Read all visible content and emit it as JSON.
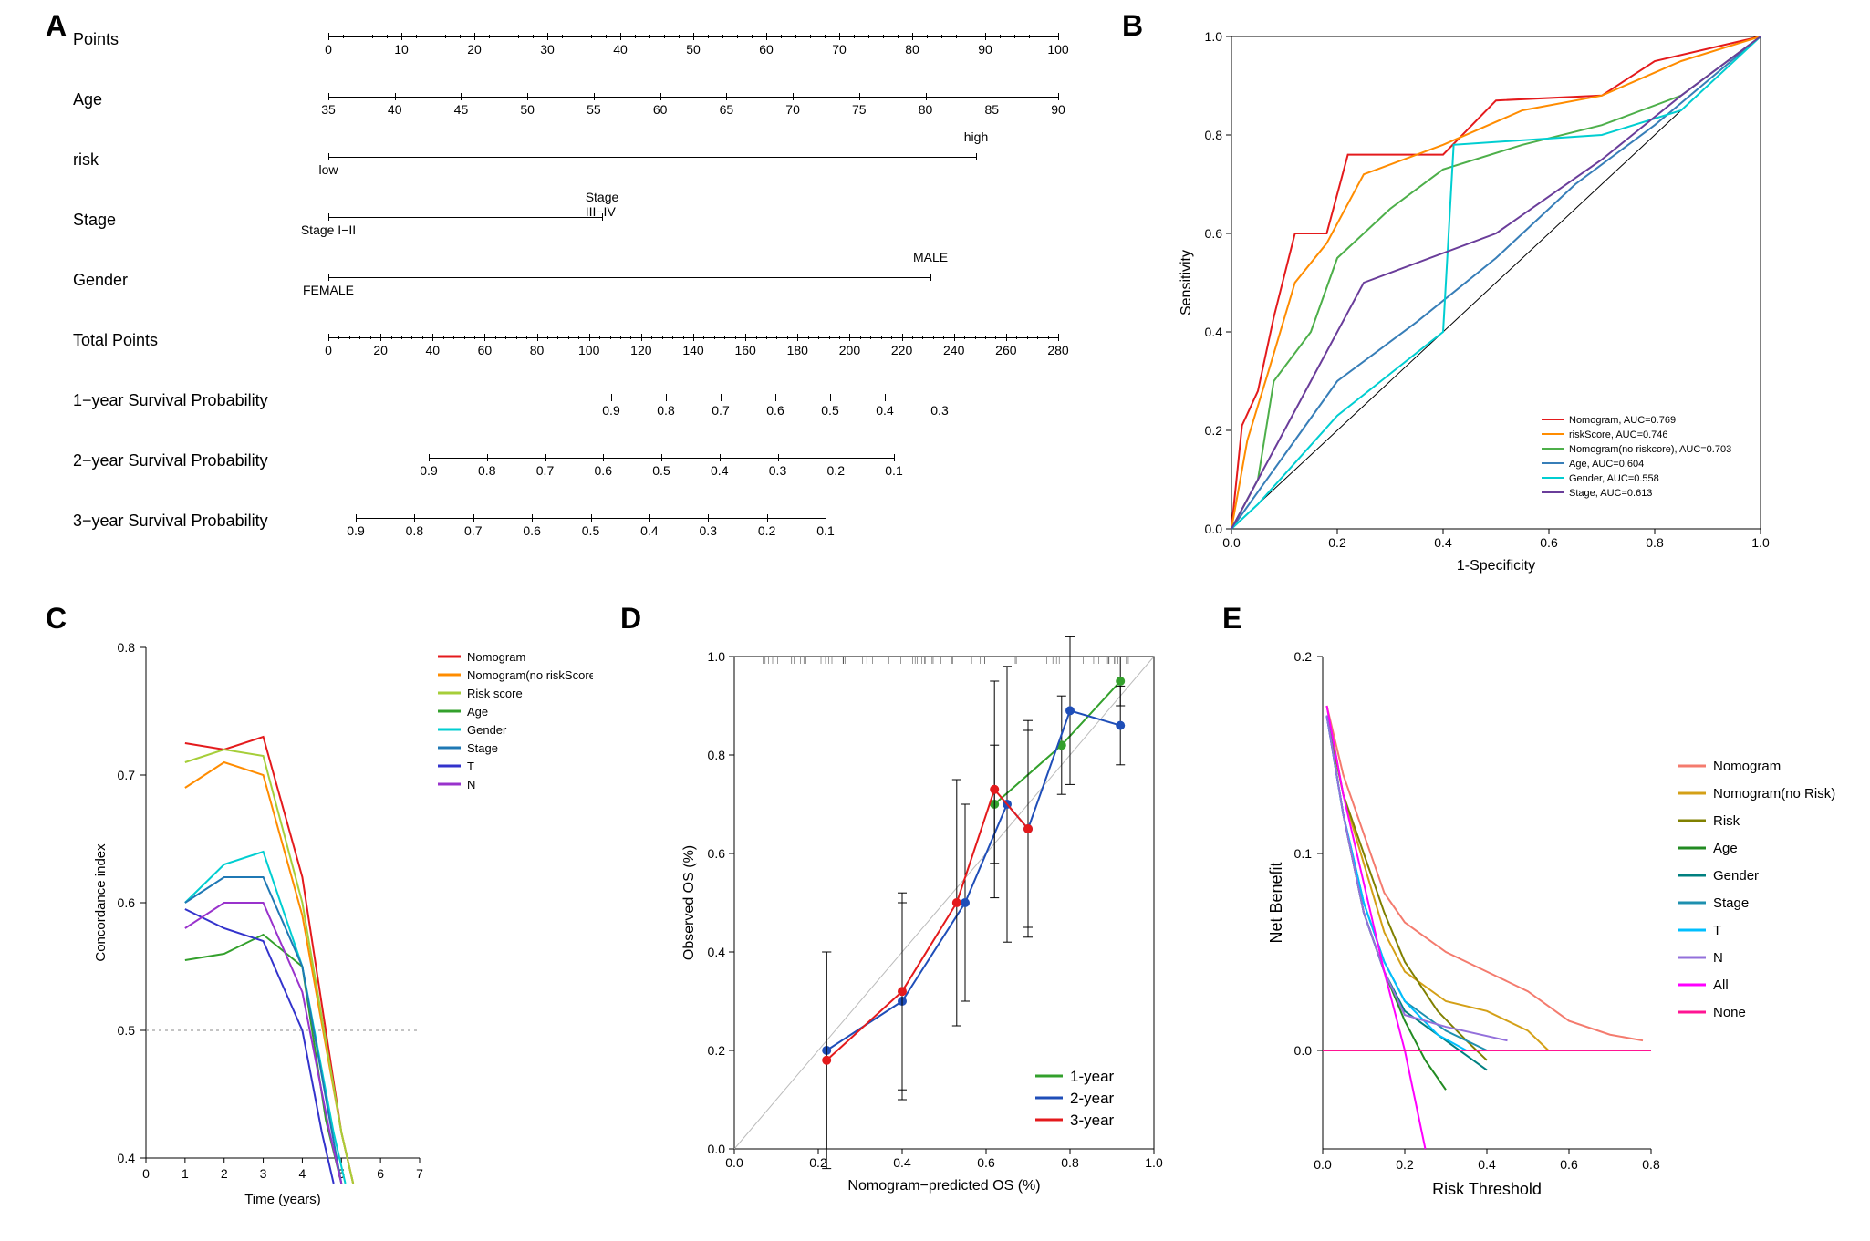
{
  "panelLabels": {
    "A": "A",
    "B": "B",
    "C": "C",
    "D": "D",
    "E": "E"
  },
  "nomogram": {
    "rows": [
      {
        "label": "Points",
        "start": 0,
        "end": 800,
        "ticks": [
          0,
          10,
          20,
          30,
          40,
          50,
          60,
          70,
          80,
          90,
          100
        ]
      },
      {
        "label": "Age",
        "start": 0,
        "end": 800,
        "ticks": [
          35,
          40,
          45,
          50,
          55,
          60,
          65,
          70,
          75,
          80,
          85,
          90
        ]
      },
      {
        "label": "risk",
        "start": 0,
        "end": 710,
        "endpoints": [
          "low",
          "high"
        ]
      },
      {
        "label": "Stage",
        "start": 0,
        "end": 300,
        "endpoints": [
          "Stage I−II",
          "Stage III−IV"
        ]
      },
      {
        "label": "Gender",
        "start": 0,
        "end": 660,
        "endpoints": [
          "FEMALE",
          "MALE"
        ]
      },
      {
        "label": "Total Points",
        "start": 0,
        "end": 800,
        "ticks": [
          0,
          20,
          40,
          60,
          80,
          100,
          120,
          140,
          160,
          180,
          200,
          220,
          240,
          260,
          280
        ]
      },
      {
        "label": "1−year Survival Probability",
        "start": 310,
        "end": 670,
        "ticks": [
          0.9,
          0.8,
          0.7,
          0.6,
          0.5,
          0.4,
          0.3
        ]
      },
      {
        "label": "2−year Survival Probability",
        "start": 110,
        "end": 620,
        "ticks": [
          0.9,
          0.8,
          0.7,
          0.6,
          0.5,
          0.4,
          0.3,
          0.2,
          0.1
        ]
      },
      {
        "label": "3−year Survival Probability",
        "start": 30,
        "end": 545,
        "ticks": [
          0.9,
          0.8,
          0.7,
          0.6,
          0.5,
          0.4,
          0.3,
          0.2,
          0.1
        ]
      }
    ]
  },
  "roc": {
    "xlabel": "1-Specificity",
    "ylabel": "Sensitivity",
    "xlim": [
      0,
      1
    ],
    "ylim": [
      0,
      1
    ],
    "ticks": [
      0.0,
      0.2,
      0.4,
      0.6,
      0.8,
      1.0
    ],
    "legend": [
      {
        "label": "Nomogram, AUC=0.769",
        "color": "#e41a1c"
      },
      {
        "label": "riskScore, AUC=0.746",
        "color": "#ff8c00"
      },
      {
        "label": "Nomogram(no riskcore), AUC=0.703",
        "color": "#4daf4a"
      },
      {
        "label": "Age, AUC=0.604",
        "color": "#377eb8"
      },
      {
        "label": "Gender, AUC=0.558",
        "color": "#00ced1"
      },
      {
        "label": "Stage, AUC=0.613",
        "color": "#6a3d9a"
      }
    ],
    "curves": {
      "Nomogram": {
        "color": "#e41a1c",
        "pts": [
          [
            0,
            0
          ],
          [
            0.02,
            0.21
          ],
          [
            0.05,
            0.28
          ],
          [
            0.08,
            0.43
          ],
          [
            0.12,
            0.6
          ],
          [
            0.18,
            0.6
          ],
          [
            0.22,
            0.76
          ],
          [
            0.4,
            0.76
          ],
          [
            0.5,
            0.87
          ],
          [
            0.7,
            0.88
          ],
          [
            0.8,
            0.95
          ],
          [
            1,
            1
          ]
        ]
      },
      "riskScore": {
        "color": "#ff8c00",
        "pts": [
          [
            0,
            0
          ],
          [
            0.03,
            0.18
          ],
          [
            0.07,
            0.32
          ],
          [
            0.12,
            0.5
          ],
          [
            0.18,
            0.58
          ],
          [
            0.25,
            0.72
          ],
          [
            0.4,
            0.78
          ],
          [
            0.55,
            0.85
          ],
          [
            0.7,
            0.88
          ],
          [
            0.85,
            0.95
          ],
          [
            1,
            1
          ]
        ]
      },
      "NomNoRisk": {
        "color": "#4daf4a",
        "pts": [
          [
            0,
            0
          ],
          [
            0.05,
            0.1
          ],
          [
            0.08,
            0.3
          ],
          [
            0.15,
            0.4
          ],
          [
            0.2,
            0.55
          ],
          [
            0.3,
            0.65
          ],
          [
            0.4,
            0.73
          ],
          [
            0.55,
            0.78
          ],
          [
            0.7,
            0.82
          ],
          [
            0.85,
            0.88
          ],
          [
            1,
            1
          ]
        ]
      },
      "Age": {
        "color": "#377eb8",
        "pts": [
          [
            0,
            0
          ],
          [
            0.1,
            0.15
          ],
          [
            0.2,
            0.3
          ],
          [
            0.35,
            0.42
          ],
          [
            0.5,
            0.55
          ],
          [
            0.65,
            0.7
          ],
          [
            0.8,
            0.82
          ],
          [
            1,
            1
          ]
        ]
      },
      "Gender": {
        "color": "#00ced1",
        "pts": [
          [
            0,
            0
          ],
          [
            0.05,
            0.05
          ],
          [
            0.2,
            0.23
          ],
          [
            0.4,
            0.4
          ],
          [
            0.42,
            0.78
          ],
          [
            0.7,
            0.8
          ],
          [
            0.85,
            0.85
          ],
          [
            1,
            1
          ]
        ]
      },
      "Stage": {
        "color": "#6a3d9a",
        "pts": [
          [
            0,
            0
          ],
          [
            0.15,
            0.3
          ],
          [
            0.25,
            0.5
          ],
          [
            0.5,
            0.6
          ],
          [
            0.7,
            0.75
          ],
          [
            0.85,
            0.88
          ],
          [
            1,
            1
          ]
        ]
      }
    }
  },
  "cindex": {
    "xlabel": "Time (years)",
    "ylabel": "Concordance index",
    "xlim": [
      0,
      7
    ],
    "ylim": [
      0.4,
      0.8
    ],
    "xticks": [
      0,
      1,
      2,
      3,
      4,
      5,
      6,
      7
    ],
    "yticks": [
      0.4,
      0.5,
      0.6,
      0.7,
      0.8
    ],
    "refline_y": 0.5,
    "legend": [
      {
        "label": "Nomogram",
        "color": "#e41a1c"
      },
      {
        "label": "Nomogram(no riskScore)",
        "color": "#ff8c00"
      },
      {
        "label": "Risk score",
        "color": "#a6ce39"
      },
      {
        "label": "Age",
        "color": "#33a02c"
      },
      {
        "label": "Gender",
        "color": "#00ced1"
      },
      {
        "label": "Stage",
        "color": "#1f78b4"
      },
      {
        "label": "T",
        "color": "#3333cc"
      },
      {
        "label": "N",
        "color": "#9933cc"
      }
    ],
    "curves": {
      "Nomogram": {
        "color": "#e41a1c",
        "pts": [
          [
            1,
            0.725
          ],
          [
            2,
            0.72
          ],
          [
            3,
            0.73
          ],
          [
            4,
            0.62
          ],
          [
            5,
            0.42
          ],
          [
            5.3,
            0.38
          ]
        ]
      },
      "NomNoRisk": {
        "color": "#ff8c00",
        "pts": [
          [
            1,
            0.69
          ],
          [
            2,
            0.71
          ],
          [
            3,
            0.7
          ],
          [
            4,
            0.59
          ],
          [
            5,
            0.42
          ],
          [
            5.3,
            0.38
          ]
        ]
      },
      "RiskScore": {
        "color": "#a6ce39",
        "pts": [
          [
            1,
            0.71
          ],
          [
            2,
            0.72
          ],
          [
            3,
            0.715
          ],
          [
            4,
            0.6
          ],
          [
            5,
            0.42
          ],
          [
            5.3,
            0.38
          ]
        ]
      },
      "Age": {
        "color": "#33a02c",
        "pts": [
          [
            1,
            0.555
          ],
          [
            2,
            0.56
          ],
          [
            3,
            0.575
          ],
          [
            4,
            0.55
          ],
          [
            4.6,
            0.43
          ],
          [
            5,
            0.38
          ]
        ]
      },
      "Gender": {
        "color": "#00ced1",
        "pts": [
          [
            1,
            0.6
          ],
          [
            2,
            0.63
          ],
          [
            3,
            0.64
          ],
          [
            4,
            0.55
          ],
          [
            4.8,
            0.42
          ],
          [
            5.1,
            0.38
          ]
        ]
      },
      "Stage": {
        "color": "#1f78b4",
        "pts": [
          [
            1,
            0.6
          ],
          [
            2,
            0.62
          ],
          [
            3,
            0.62
          ],
          [
            4,
            0.55
          ],
          [
            4.7,
            0.43
          ],
          [
            5,
            0.38
          ]
        ]
      },
      "T": {
        "color": "#3333cc",
        "pts": [
          [
            1,
            0.595
          ],
          [
            2,
            0.58
          ],
          [
            3,
            0.57
          ],
          [
            4,
            0.5
          ],
          [
            4.5,
            0.42
          ],
          [
            4.8,
            0.38
          ]
        ]
      },
      "N": {
        "color": "#9933cc",
        "pts": [
          [
            1,
            0.58
          ],
          [
            2,
            0.6
          ],
          [
            3,
            0.6
          ],
          [
            4,
            0.53
          ],
          [
            4.7,
            0.42
          ],
          [
            5,
            0.38
          ]
        ]
      }
    }
  },
  "calibration": {
    "xlabel": "Nomogram−predicted OS (%)",
    "ylabel": "Observed OS (%)",
    "xlim": [
      0,
      1
    ],
    "ylim": [
      0,
      1
    ],
    "ticks": [
      0,
      0.2,
      0.4,
      0.6,
      0.8,
      1.0
    ],
    "legend": [
      {
        "label": "1-year",
        "color": "#33a02c"
      },
      {
        "label": "2-year",
        "color": "#1f4eb8"
      },
      {
        "label": "3-year",
        "color": "#e41a1c"
      }
    ],
    "series": {
      "1year": {
        "color": "#33a02c",
        "pts": [
          [
            0.62,
            0.7
          ],
          [
            0.78,
            0.82
          ],
          [
            0.92,
            0.95
          ]
        ],
        "err": [
          0.12,
          0.1,
          0.05
        ]
      },
      "2year": {
        "color": "#1f4eb8",
        "pts": [
          [
            0.22,
            0.2
          ],
          [
            0.4,
            0.3
          ],
          [
            0.55,
            0.5
          ],
          [
            0.65,
            0.7
          ],
          [
            0.7,
            0.65
          ],
          [
            0.8,
            0.89
          ],
          [
            0.92,
            0.86
          ]
        ],
        "err": [
          0.2,
          0.2,
          0.2,
          0.28,
          0.22,
          0.15,
          0.08
        ]
      },
      "3year": {
        "color": "#e41a1c",
        "pts": [
          [
            0.22,
            0.18
          ],
          [
            0.4,
            0.32
          ],
          [
            0.53,
            0.5
          ],
          [
            0.62,
            0.73
          ],
          [
            0.7,
            0.65
          ]
        ],
        "err": [
          0.22,
          0.2,
          0.25,
          0.22,
          0.2
        ]
      }
    }
  },
  "dca": {
    "xlabel": "Risk Threshold",
    "ylabel": "Net Benefit",
    "xlim": [
      0,
      0.8
    ],
    "ylim": [
      -0.05,
      0.2
    ],
    "xticks": [
      0.0,
      0.2,
      0.4,
      0.6,
      0.8
    ],
    "yticks": [
      0.0,
      0.1,
      0.2
    ],
    "legend": [
      {
        "label": "Nomogram",
        "color": "#f47b6e"
      },
      {
        "label": "Nomogram(no Risk)",
        "color": "#d4a017"
      },
      {
        "label": "Risk",
        "color": "#808000"
      },
      {
        "label": "Age",
        "color": "#228b22"
      },
      {
        "label": "Gender",
        "color": "#008080"
      },
      {
        "label": "Stage",
        "color": "#1e90af"
      },
      {
        "label": "T",
        "color": "#00bfff"
      },
      {
        "label": "N",
        "color": "#9370db"
      },
      {
        "label": "All",
        "color": "#ff00ff"
      },
      {
        "label": "None",
        "color": "#ff1493"
      }
    ],
    "curves": {
      "Nomogram": {
        "color": "#f47b6e",
        "pts": [
          [
            0.01,
            0.175
          ],
          [
            0.05,
            0.14
          ],
          [
            0.1,
            0.11
          ],
          [
            0.15,
            0.08
          ],
          [
            0.2,
            0.065
          ],
          [
            0.3,
            0.05
          ],
          [
            0.4,
            0.04
          ],
          [
            0.5,
            0.03
          ],
          [
            0.6,
            0.015
          ],
          [
            0.7,
            0.008
          ],
          [
            0.78,
            0.005
          ]
        ]
      },
      "NomNoRisk": {
        "color": "#d4a017",
        "pts": [
          [
            0.01,
            0.175
          ],
          [
            0.05,
            0.13
          ],
          [
            0.1,
            0.095
          ],
          [
            0.15,
            0.06
          ],
          [
            0.2,
            0.04
          ],
          [
            0.3,
            0.025
          ],
          [
            0.4,
            0.02
          ],
          [
            0.5,
            0.01
          ],
          [
            0.55,
            0
          ]
        ]
      },
      "Risk": {
        "color": "#808000",
        "pts": [
          [
            0.01,
            0.17
          ],
          [
            0.05,
            0.13
          ],
          [
            0.1,
            0.1
          ],
          [
            0.15,
            0.07
          ],
          [
            0.2,
            0.045
          ],
          [
            0.28,
            0.02
          ],
          [
            0.35,
            0.005
          ],
          [
            0.4,
            -0.005
          ]
        ]
      },
      "Age": {
        "color": "#228b22",
        "pts": [
          [
            0.01,
            0.17
          ],
          [
            0.05,
            0.12
          ],
          [
            0.1,
            0.07
          ],
          [
            0.15,
            0.04
          ],
          [
            0.2,
            0.015
          ],
          [
            0.25,
            -0.005
          ],
          [
            0.3,
            -0.02
          ]
        ]
      },
      "Gender": {
        "color": "#008080",
        "pts": [
          [
            0.01,
            0.17
          ],
          [
            0.05,
            0.12
          ],
          [
            0.1,
            0.07
          ],
          [
            0.15,
            0.04
          ],
          [
            0.2,
            0.02
          ],
          [
            0.3,
            0.005
          ],
          [
            0.4,
            -0.01
          ]
        ]
      },
      "Stage": {
        "color": "#1e90af",
        "pts": [
          [
            0.01,
            0.17
          ],
          [
            0.05,
            0.12
          ],
          [
            0.1,
            0.075
          ],
          [
            0.15,
            0.045
          ],
          [
            0.2,
            0.025
          ],
          [
            0.3,
            0.01
          ],
          [
            0.4,
            0
          ]
        ]
      },
      "T": {
        "color": "#00bfff",
        "pts": [
          [
            0.01,
            0.17
          ],
          [
            0.05,
            0.12
          ],
          [
            0.1,
            0.075
          ],
          [
            0.15,
            0.045
          ],
          [
            0.2,
            0.025
          ],
          [
            0.28,
            0.008
          ],
          [
            0.35,
            0
          ]
        ]
      },
      "N": {
        "color": "#9370db",
        "pts": [
          [
            0.01,
            0.17
          ],
          [
            0.05,
            0.12
          ],
          [
            0.1,
            0.07
          ],
          [
            0.15,
            0.04
          ],
          [
            0.2,
            0.018
          ],
          [
            0.3,
            0.012
          ],
          [
            0.45,
            0.005
          ]
        ]
      },
      "All": {
        "color": "#ff00ff",
        "pts": [
          [
            0.01,
            0.175
          ],
          [
            0.05,
            0.13
          ],
          [
            0.1,
            0.085
          ],
          [
            0.15,
            0.04
          ],
          [
            0.2,
            0
          ],
          [
            0.25,
            -0.05
          ]
        ]
      },
      "None": {
        "color": "#ff1493",
        "pts": [
          [
            0,
            0
          ],
          [
            0.8,
            0
          ]
        ]
      }
    }
  }
}
